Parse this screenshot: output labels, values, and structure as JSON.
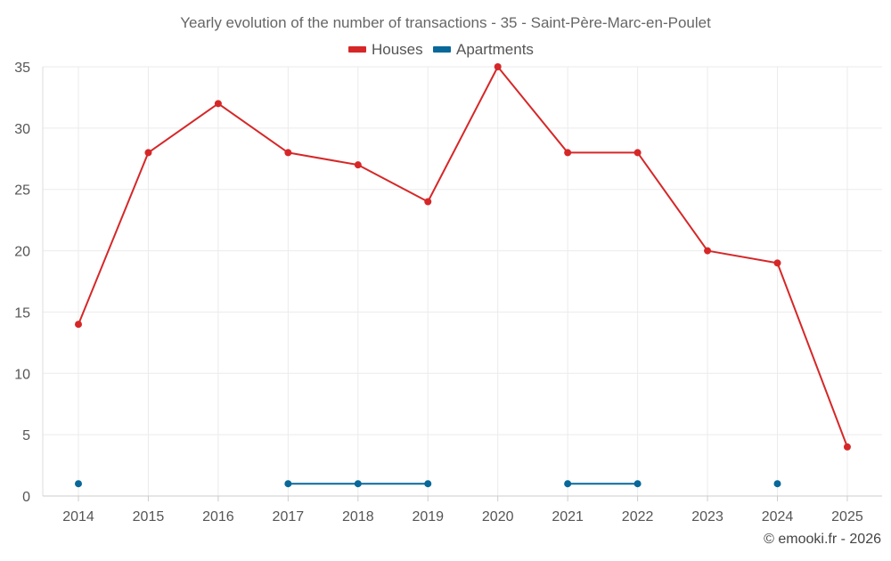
{
  "chart_data": {
    "type": "line",
    "title": "Yearly evolution of the number of transactions - 35 - Saint-Père-Marc-en-Poulet",
    "categories": [
      "2014",
      "2015",
      "2016",
      "2017",
      "2018",
      "2019",
      "2020",
      "2021",
      "2022",
      "2023",
      "2024",
      "2025"
    ],
    "series": [
      {
        "name": "Houses",
        "color": "#d62728",
        "values": [
          14,
          28,
          32,
          28,
          27,
          24,
          35,
          28,
          28,
          20,
          19,
          4
        ]
      },
      {
        "name": "Apartments",
        "color": "#08689a",
        "values": [
          1,
          null,
          null,
          1,
          1,
          1,
          null,
          1,
          1,
          null,
          1,
          null
        ]
      }
    ],
    "y_ticks": [
      "0",
      "5",
      "10",
      "15",
      "20",
      "25",
      "30",
      "35"
    ],
    "ylim": [
      0,
      35
    ],
    "grid": true,
    "legend_position": "top-center",
    "credit": "© emooki.fr - 2026"
  }
}
